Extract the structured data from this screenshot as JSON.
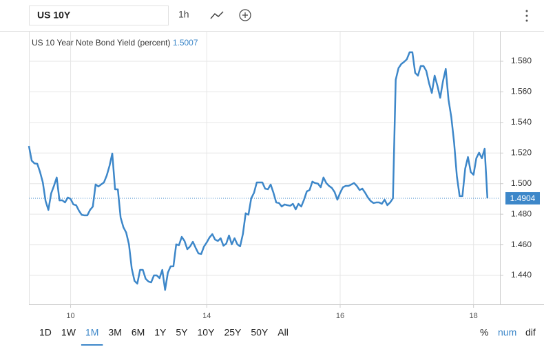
{
  "toolbar": {
    "symbol": "US 10Y",
    "interval": "1h"
  },
  "chart_data": {
    "type": "line",
    "title": "US 10 Year Note Bond Yield (percent)",
    "hover_value": "1.5007",
    "series": [
      {
        "name": "US 10Y",
        "color": "#3d87c9",
        "values": [
          1.5246,
          1.515,
          1.5132,
          1.513,
          1.5076,
          1.5008,
          1.4886,
          1.4828,
          1.4936,
          1.4985,
          1.504,
          1.489,
          1.4891,
          1.4877,
          1.4909,
          1.49,
          1.4864,
          1.4859,
          1.4823,
          1.4796,
          1.4792,
          1.4792,
          1.4828,
          1.485,
          1.4995,
          1.4981,
          1.4995,
          1.5008,
          1.5053,
          1.5116,
          1.5197,
          1.4963,
          1.4963,
          1.4778,
          1.4715,
          1.468,
          1.4603,
          1.4445,
          1.4364,
          1.4346,
          1.4436,
          1.4436,
          1.4378,
          1.436,
          1.4355,
          1.44,
          1.44,
          1.4382,
          1.4436,
          1.4305,
          1.4418,
          1.4459,
          1.4459,
          1.4603,
          1.4598,
          1.4652,
          1.4625,
          1.4571,
          1.4589,
          1.462,
          1.458,
          1.4544,
          1.454,
          1.4589,
          1.4616,
          1.4648,
          1.467,
          1.4634,
          1.4625,
          1.4643,
          1.4594,
          1.4607,
          1.4661,
          1.4603,
          1.4643,
          1.4603,
          1.459,
          1.467,
          1.4806,
          1.4797,
          1.4904,
          1.494,
          1.5008,
          1.5008,
          1.5008,
          1.4967,
          1.4963,
          1.4994,
          1.494,
          1.4877,
          1.4873,
          1.485,
          1.4864,
          1.4859,
          1.4855,
          1.4868,
          1.4832,
          1.4868,
          1.485,
          1.4895,
          1.4949,
          1.4958,
          1.5013,
          1.5004,
          1.5,
          1.4976,
          1.504,
          1.5004,
          1.4985,
          1.4972,
          1.4945,
          1.4895,
          1.494,
          1.4976,
          1.4985,
          1.4985,
          1.4994,
          1.5004,
          1.4985,
          1.4958,
          1.4967,
          1.494,
          1.4909,
          1.4886,
          1.4873,
          1.4877,
          1.4877,
          1.4868,
          1.4895,
          1.4859,
          1.4877,
          1.4904,
          1.5679,
          1.5755,
          1.5782,
          1.5796,
          1.5813,
          1.5859,
          1.5859,
          1.5724,
          1.5706,
          1.5769,
          1.5769,
          1.5737,
          1.5656,
          1.5593,
          1.5706,
          1.564,
          1.5561,
          1.5669,
          1.575,
          1.5548,
          1.5435,
          1.527,
          1.5049,
          1.4918,
          1.4918,
          1.5098,
          1.5174,
          1.5076,
          1.5058,
          1.5166,
          1.5202,
          1.5166,
          1.5228,
          1.4904
        ]
      }
    ],
    "last": {
      "value": 1.4904,
      "label": "1.4904"
    },
    "xlim": [
      0,
      169.5
    ],
    "xticks": [
      {
        "value": 15,
        "label": "10"
      },
      {
        "value": 64,
        "label": "14"
      },
      {
        "value": 112,
        "label": "16"
      },
      {
        "value": 160,
        "label": "18"
      }
    ],
    "ylim": [
      1.4211,
      1.5998
    ],
    "yticks": [
      {
        "value": 1.44,
        "label": "1.440"
      },
      {
        "value": 1.46,
        "label": "1.460"
      },
      {
        "value": 1.48,
        "label": "1.480"
      },
      {
        "value": 1.5,
        "label": "1.500"
      },
      {
        "value": 1.52,
        "label": "1.520"
      },
      {
        "value": 1.54,
        "label": "1.540"
      },
      {
        "value": 1.56,
        "label": "1.560"
      },
      {
        "value": 1.58,
        "label": "1.580"
      }
    ],
    "grid": true
  },
  "ranges": {
    "items": [
      "1D",
      "1W",
      "1M",
      "3M",
      "6M",
      "1Y",
      "5Y",
      "10Y",
      "25Y",
      "50Y",
      "All"
    ],
    "active": 2
  },
  "modes": [
    "%",
    "num",
    "dif"
  ]
}
